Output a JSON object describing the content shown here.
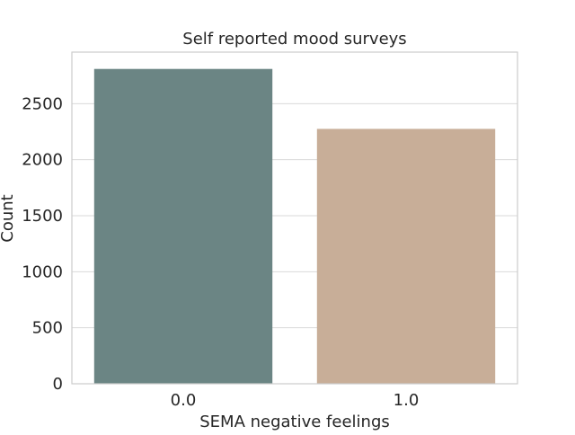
{
  "chart_data": {
    "type": "bar",
    "title": "Self reported mood surveys",
    "xlabel": "SEMA negative feelings",
    "ylabel": "Count",
    "categories": [
      "0.0",
      "1.0"
    ],
    "values": [
      2810,
      2275
    ],
    "colors": [
      "#6b8584",
      "#c8ae98"
    ],
    "ylim": [
      0,
      2960
    ],
    "yticks": [
      0,
      500,
      1000,
      1500,
      2000,
      2500
    ],
    "grid": "horizontal",
    "background": "#ffffff",
    "grid_color": "#d9d9d9",
    "spine_color": "#cccccc"
  }
}
